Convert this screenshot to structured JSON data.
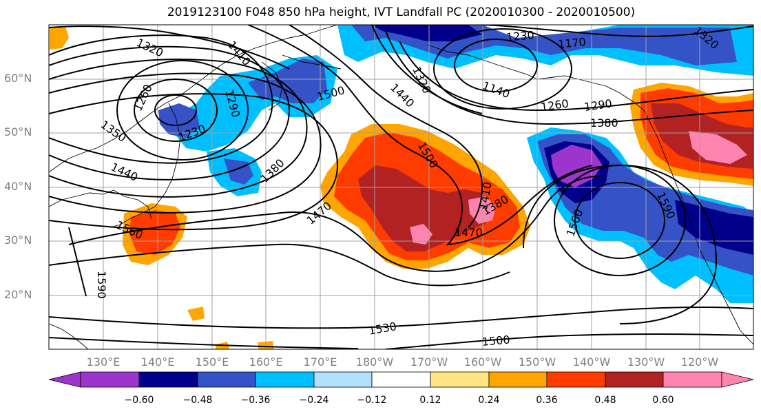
{
  "title": "2019123100 F048 850 hPa height, IVT Landfall PC (2020010300 - 2020010500)",
  "lat_labels": [
    "60°N",
    "50°N",
    "40°N",
    "30°N",
    "20°N"
  ],
  "lon_labels": [
    "130°E",
    "140°E",
    "150°E",
    "160°E",
    "170°E",
    "180°W",
    "170°W",
    "160°W",
    "150°W",
    "140°W",
    "130°W",
    "120°W"
  ],
  "colorbar": {
    "ticks": [
      "−0.60",
      "−0.48",
      "−0.36",
      "−0.24",
      "−0.12",
      "0.12",
      "0.24",
      "0.36",
      "0.48",
      "0.60"
    ],
    "colors": [
      "#9b35cc",
      "#00008b",
      "#3553c6",
      "#00bfff",
      "#b0e2ff",
      "#ffffff",
      "#ffe682",
      "#ffa500",
      "#ff3c00",
      "#b22222",
      "#ff85b0"
    ]
  },
  "contour_labels": [
    "1320",
    "1410",
    "1260",
    "1290",
    "1230",
    "1350",
    "1440",
    "1500",
    "1440",
    "1380",
    "1470",
    "1500",
    "1410",
    "1380",
    "1470",
    "1560",
    "1560",
    "1590",
    "1590",
    "1230",
    "1170",
    "1320",
    "1140",
    "1260",
    "1290",
    "1380",
    "1530",
    "1500",
    "1320"
  ]
}
